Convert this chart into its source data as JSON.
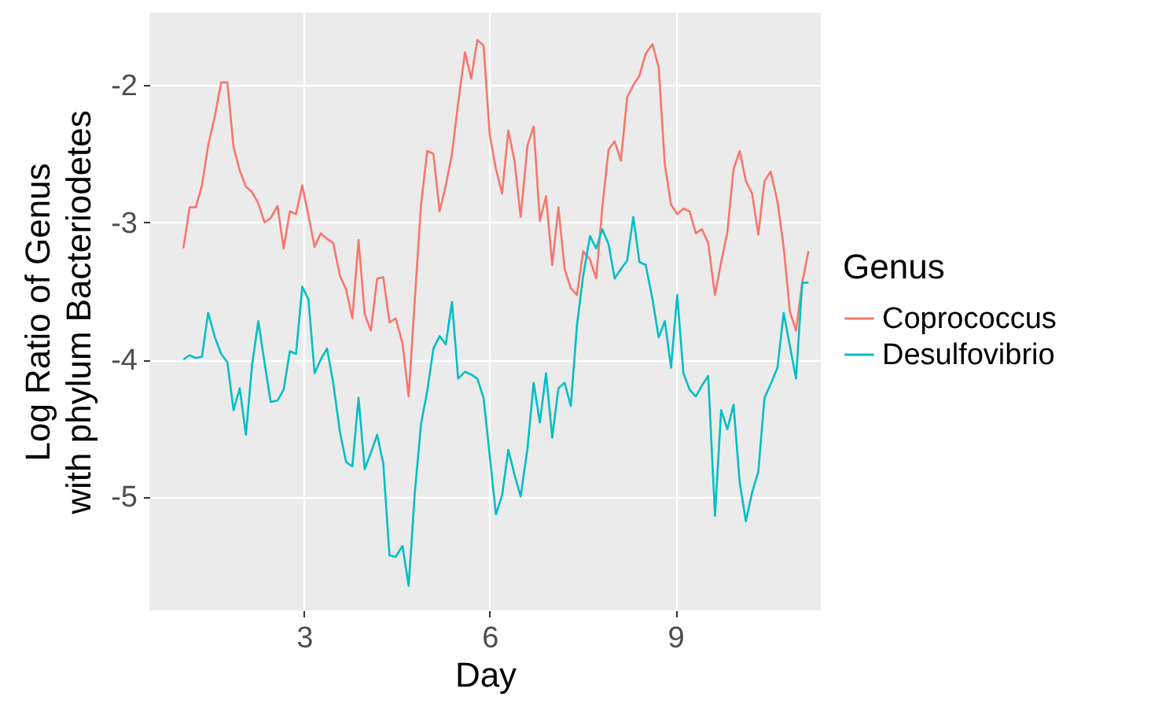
{
  "chart_data": {
    "type": "line",
    "xlabel": "Day",
    "ylabel": "Log Ratio of Genus\nwith phylum Bacteriodetes",
    "legend_title": "Genus",
    "legend": "right",
    "grid": true,
    "xlim": [
      0.5,
      11.35
    ],
    "xticks": [
      3,
      6,
      9
    ],
    "ylim": [
      -5.83,
      -1.47
    ],
    "yticks": [
      -5,
      -4,
      -3,
      -2
    ],
    "x": [
      1.05,
      1.15,
      1.25,
      1.35,
      1.45,
      1.56,
      1.66,
      1.76,
      1.86,
      1.96,
      2.06,
      2.16,
      2.26,
      2.36,
      2.46,
      2.57,
      2.67,
      2.77,
      2.87,
      2.97,
      3.07,
      3.17,
      3.27,
      3.37,
      3.47,
      3.58,
      3.68,
      3.78,
      3.88,
      3.98,
      4.08,
      4.18,
      4.28,
      4.38,
      4.48,
      4.59,
      4.69,
      4.79,
      4.89,
      4.99,
      5.09,
      5.19,
      5.29,
      5.39,
      5.49,
      5.6,
      5.7,
      5.8,
      5.9,
      6.0,
      6.1,
      6.2,
      6.3,
      6.4,
      6.5,
      6.61,
      6.71,
      6.81,
      6.91,
      7.01,
      7.11,
      7.21,
      7.31,
      7.41,
      7.51,
      7.62,
      7.72,
      7.82,
      7.92,
      8.02,
      8.12,
      8.22,
      8.32,
      8.42,
      8.52,
      8.63,
      8.73,
      8.83,
      8.93,
      9.03,
      9.13,
      9.23,
      9.33,
      9.43,
      9.53,
      9.64,
      9.74,
      9.84,
      9.94,
      10.04,
      10.14,
      10.24,
      10.34,
      10.44,
      10.54,
      10.65,
      10.75,
      10.85,
      10.95,
      11.05,
      11.15
    ],
    "series": [
      {
        "name": "Coprococcus",
        "color": "#f8766d",
        "values": [
          -3.19,
          -2.89,
          -2.89,
          -2.73,
          -2.44,
          -2.22,
          -1.98,
          -1.98,
          -2.45,
          -2.62,
          -2.74,
          -2.78,
          -2.86,
          -3.0,
          -2.97,
          -2.88,
          -3.19,
          -2.92,
          -2.94,
          -2.73,
          -2.95,
          -3.18,
          -3.08,
          -3.12,
          -3.15,
          -3.39,
          -3.49,
          -3.7,
          -3.13,
          -3.67,
          -3.79,
          -3.41,
          -3.4,
          -3.73,
          -3.7,
          -3.88,
          -4.27,
          -3.56,
          -2.87,
          -2.48,
          -2.5,
          -2.92,
          -2.73,
          -2.5,
          -2.13,
          -1.76,
          -1.95,
          -1.67,
          -1.71,
          -2.36,
          -2.61,
          -2.79,
          -2.33,
          -2.55,
          -2.96,
          -2.44,
          -2.3,
          -2.99,
          -2.81,
          -3.31,
          -2.89,
          -3.34,
          -3.48,
          -3.53,
          -3.21,
          -3.27,
          -3.41,
          -2.89,
          -2.47,
          -2.41,
          -2.55,
          -2.09,
          -2.0,
          -1.93,
          -1.77,
          -1.7,
          -1.87,
          -2.58,
          -2.87,
          -2.94,
          -2.9,
          -2.92,
          -3.08,
          -3.05,
          -3.15,
          -3.53,
          -3.29,
          -3.07,
          -2.61,
          -2.48,
          -2.7,
          -2.79,
          -3.09,
          -2.7,
          -2.63,
          -2.85,
          -3.18,
          -3.65,
          -3.79,
          -3.44,
          -3.21
        ]
      },
      {
        "name": "Desulfovibrio",
        "color": "#00bfc4",
        "values": [
          -4.0,
          -3.97,
          -3.99,
          -3.98,
          -3.66,
          -3.84,
          -3.96,
          -4.02,
          -4.37,
          -4.21,
          -4.55,
          -4.04,
          -3.72,
          -4.02,
          -4.31,
          -4.3,
          -4.22,
          -3.94,
          -3.96,
          -3.47,
          -3.56,
          -4.1,
          -4.0,
          -3.92,
          -4.17,
          -4.53,
          -4.75,
          -4.78,
          -4.28,
          -4.8,
          -4.68,
          -4.55,
          -4.76,
          -5.43,
          -5.44,
          -5.36,
          -5.65,
          -4.97,
          -4.47,
          -4.23,
          -3.92,
          -3.83,
          -3.89,
          -3.58,
          -4.14,
          -4.09,
          -4.11,
          -4.14,
          -4.28,
          -4.7,
          -5.13,
          -4.99,
          -4.66,
          -4.84,
          -5.0,
          -4.65,
          -4.17,
          -4.46,
          -4.1,
          -4.57,
          -4.21,
          -4.17,
          -4.34,
          -3.75,
          -3.39,
          -3.1,
          -3.19,
          -3.05,
          -3.16,
          -3.41,
          -3.34,
          -3.28,
          -2.96,
          -3.29,
          -3.31,
          -3.56,
          -3.84,
          -3.72,
          -4.06,
          -3.53,
          -4.1,
          -4.22,
          -4.27,
          -4.19,
          -4.12,
          -5.14,
          -4.37,
          -4.51,
          -4.33,
          -4.9,
          -5.18,
          -4.97,
          -4.82,
          -4.28,
          -4.18,
          -4.06,
          -3.66,
          -3.9,
          -4.14,
          -3.44,
          -3.44
        ]
      }
    ]
  }
}
